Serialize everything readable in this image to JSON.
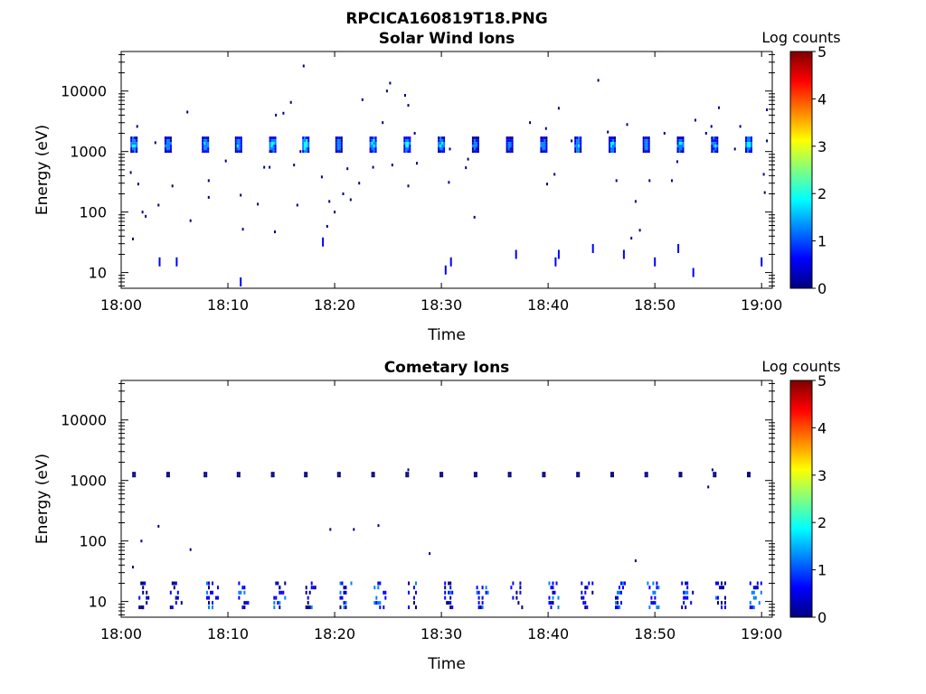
{
  "figure_title": "RPCICA160819T18.PNG",
  "colors": {
    "frame": "#000000",
    "colormap": [
      "#00007f",
      "#0000ff",
      "#007fff",
      "#00ffff",
      "#7fff7f",
      "#ffff00",
      "#ff7f00",
      "#ff0000",
      "#7f0000"
    ]
  },
  "chart_data": [
    {
      "type": "heatmap",
      "title": "Solar Wind Ions",
      "xlabel": "Time",
      "ylabel": "Energy (eV)",
      "x_ticks": [
        "18:00",
        "18:10",
        "18:20",
        "18:30",
        "18:40",
        "18:50",
        "19:00"
      ],
      "xlim_minutes": [
        0,
        61
      ],
      "y_scale": "log",
      "y_ticks": [
        10,
        100,
        1000,
        10000
      ],
      "y_tick_labels": [
        "10",
        "100",
        "1000",
        "10000"
      ],
      "ylim": [
        5.5,
        45000
      ],
      "colorbar": {
        "label": "Log counts",
        "range": [
          0,
          5
        ],
        "ticks": [
          "0",
          "1",
          "2",
          "3",
          "4",
          "5"
        ]
      },
      "bursts": [
        {
          "t": 1.2,
          "e": 1300,
          "c": 2.3
        },
        {
          "t": 4.4,
          "e": 1300,
          "c": 2.1
        },
        {
          "t": 7.9,
          "e": 1300,
          "c": 2.2
        },
        {
          "t": 11.0,
          "e": 1300,
          "c": 2.2
        },
        {
          "t": 14.2,
          "e": 1300,
          "c": 2.4
        },
        {
          "t": 17.3,
          "e": 1300,
          "c": 2.5
        },
        {
          "t": 20.4,
          "e": 1300,
          "c": 2.1
        },
        {
          "t": 23.6,
          "e": 1300,
          "c": 2.6
        },
        {
          "t": 26.8,
          "e": 1300,
          "c": 2.4
        },
        {
          "t": 30.0,
          "e": 1300,
          "c": 2.3
        },
        {
          "t": 33.2,
          "e": 1300,
          "c": 2.0
        },
        {
          "t": 36.4,
          "e": 1300,
          "c": 2.0
        },
        {
          "t": 39.6,
          "e": 1300,
          "c": 2.1
        },
        {
          "t": 42.8,
          "e": 1300,
          "c": 2.2
        },
        {
          "t": 46.0,
          "e": 1300,
          "c": 2.3
        },
        {
          "t": 49.2,
          "e": 1300,
          "c": 2.0
        },
        {
          "t": 52.4,
          "e": 1300,
          "c": 2.3
        },
        {
          "t": 55.6,
          "e": 1300,
          "c": 2.2
        },
        {
          "t": 58.8,
          "e": 1300,
          "c": 2.4
        }
      ],
      "points": [
        {
          "t": 1.5,
          "e": 2600
        },
        {
          "t": 0.9,
          "e": 450
        },
        {
          "t": 1.6,
          "e": 290
        },
        {
          "t": 2.0,
          "e": 100
        },
        {
          "t": 2.3,
          "e": 85
        },
        {
          "t": 1.1,
          "e": 36
        },
        {
          "t": 3.5,
          "e": 130
        },
        {
          "t": 4.8,
          "e": 270
        },
        {
          "t": 6.2,
          "e": 4500
        },
        {
          "t": 6.5,
          "e": 72
        },
        {
          "t": 8.2,
          "e": 330
        },
        {
          "t": 8.2,
          "e": 175
        },
        {
          "t": 11.2,
          "e": 190
        },
        {
          "t": 11.4,
          "e": 52
        },
        {
          "t": 12.8,
          "e": 135
        },
        {
          "t": 13.4,
          "e": 550
        },
        {
          "t": 13.9,
          "e": 550
        },
        {
          "t": 14.5,
          "e": 4000
        },
        {
          "t": 15.2,
          "e": 4300
        },
        {
          "t": 15.9,
          "e": 6500
        },
        {
          "t": 17.1,
          "e": 26000
        },
        {
          "t": 16.2,
          "e": 600
        },
        {
          "t": 16.5,
          "e": 130
        },
        {
          "t": 14.4,
          "e": 47
        },
        {
          "t": 18.8,
          "e": 380
        },
        {
          "t": 19.5,
          "e": 150
        },
        {
          "t": 19.3,
          "e": 58
        },
        {
          "t": 20.0,
          "e": 100
        },
        {
          "t": 20.8,
          "e": 200
        },
        {
          "t": 21.5,
          "e": 160
        },
        {
          "t": 22.3,
          "e": 300
        },
        {
          "t": 22.6,
          "e": 7200
        },
        {
          "t": 24.5,
          "e": 3000
        },
        {
          "t": 24.9,
          "e": 10000
        },
        {
          "t": 25.2,
          "e": 13500
        },
        {
          "t": 26.6,
          "e": 8500
        },
        {
          "t": 26.9,
          "e": 5800
        },
        {
          "t": 27.5,
          "e": 2000
        },
        {
          "t": 27.7,
          "e": 640
        },
        {
          "t": 26.9,
          "e": 270
        },
        {
          "t": 21.2,
          "e": 520
        },
        {
          "t": 23.6,
          "e": 550
        },
        {
          "t": 25.4,
          "e": 600
        },
        {
          "t": 32.3,
          "e": 540
        },
        {
          "t": 30.8,
          "e": 1100
        },
        {
          "t": 30.7,
          "e": 310
        },
        {
          "t": 33.1,
          "e": 82
        },
        {
          "t": 38.3,
          "e": 3000
        },
        {
          "t": 39.8,
          "e": 2400
        },
        {
          "t": 39.9,
          "e": 290
        },
        {
          "t": 40.6,
          "e": 420
        },
        {
          "t": 42.2,
          "e": 1500
        },
        {
          "t": 44.7,
          "e": 15000
        },
        {
          "t": 45.6,
          "e": 2100
        },
        {
          "t": 46.4,
          "e": 330
        },
        {
          "t": 47.4,
          "e": 2800
        },
        {
          "t": 48.2,
          "e": 150
        },
        {
          "t": 48.6,
          "e": 50
        },
        {
          "t": 47.8,
          "e": 37
        },
        {
          "t": 49.5,
          "e": 330
        },
        {
          "t": 50.9,
          "e": 2000
        },
        {
          "t": 52.1,
          "e": 680
        },
        {
          "t": 51.6,
          "e": 330
        },
        {
          "t": 53.8,
          "e": 3300
        },
        {
          "t": 54.8,
          "e": 2000
        },
        {
          "t": 55.3,
          "e": 2600
        },
        {
          "t": 56.0,
          "e": 5300
        },
        {
          "t": 57.5,
          "e": 1100
        },
        {
          "t": 60.2,
          "e": 420
        },
        {
          "t": 60.3,
          "e": 210
        },
        {
          "t": 60.5,
          "e": 4900
        },
        {
          "t": 58.0,
          "e": 2600
        },
        {
          "t": 60.5,
          "e": 1500
        },
        {
          "t": 3.2,
          "e": 1400
        },
        {
          "t": 41.0,
          "e": 5200
        },
        {
          "t": 32.5,
          "e": 750
        },
        {
          "t": 9.8,
          "e": 700
        },
        {
          "t": 16.8,
          "e": 1000
        }
      ],
      "sticks": [
        {
          "t": 3.6,
          "e": 15
        },
        {
          "t": 5.2,
          "e": 15
        },
        {
          "t": 11.2,
          "e": 7
        },
        {
          "t": 18.9,
          "e": 32
        },
        {
          "t": 30.4,
          "e": 11
        },
        {
          "t": 30.9,
          "e": 15
        },
        {
          "t": 37.0,
          "e": 20
        },
        {
          "t": 40.7,
          "e": 15
        },
        {
          "t": 41.0,
          "e": 20
        },
        {
          "t": 44.2,
          "e": 25
        },
        {
          "t": 47.1,
          "e": 20
        },
        {
          "t": 50.0,
          "e": 15
        },
        {
          "t": 52.2,
          "e": 25
        },
        {
          "t": 53.6,
          "e": 10
        },
        {
          "t": 60.0,
          "e": 15
        }
      ]
    },
    {
      "type": "heatmap",
      "title": "Cometary Ions",
      "xlabel": "Time",
      "ylabel": "Energy (eV)",
      "x_ticks": [
        "18:00",
        "18:10",
        "18:20",
        "18:30",
        "18:40",
        "18:50",
        "19:00"
      ],
      "xlim_minutes": [
        0,
        61
      ],
      "y_scale": "log",
      "y_ticks": [
        10,
        100,
        1000,
        10000
      ],
      "y_tick_labels": [
        "10",
        "100",
        "1000",
        "10000"
      ],
      "ylim": [
        5.5,
        45000
      ],
      "colorbar": {
        "label": "Log counts",
        "range": [
          0,
          5
        ],
        "ticks": [
          "0",
          "1",
          "2",
          "3",
          "4",
          "5"
        ]
      },
      "bursts": [
        {
          "t": 1.2,
          "e": 1250,
          "c": 1.1
        },
        {
          "t": 4.4,
          "e": 1250,
          "c": 1.0
        },
        {
          "t": 7.9,
          "e": 1250,
          "c": 1.0
        },
        {
          "t": 11.0,
          "e": 1250,
          "c": 1.0
        },
        {
          "t": 14.2,
          "e": 1250,
          "c": 1.0
        },
        {
          "t": 17.3,
          "e": 1250,
          "c": 1.0
        },
        {
          "t": 20.4,
          "e": 1250,
          "c": 1.0
        },
        {
          "t": 23.6,
          "e": 1250,
          "c": 1.0
        },
        {
          "t": 26.8,
          "e": 1250,
          "c": 1.0
        },
        {
          "t": 30.0,
          "e": 1250,
          "c": 1.1
        },
        {
          "t": 33.2,
          "e": 1250,
          "c": 1.0
        },
        {
          "t": 36.4,
          "e": 1250,
          "c": 1.0
        },
        {
          "t": 39.6,
          "e": 1250,
          "c": 1.0
        },
        {
          "t": 42.8,
          "e": 1250,
          "c": 1.1
        },
        {
          "t": 46.0,
          "e": 1250,
          "c": 1.0
        },
        {
          "t": 49.2,
          "e": 1250,
          "c": 1.1
        },
        {
          "t": 52.4,
          "e": 1250,
          "c": 1.0
        },
        {
          "t": 55.6,
          "e": 1250,
          "c": 1.0
        },
        {
          "t": 58.8,
          "e": 1250,
          "c": 1.0
        }
      ],
      "low_bursts": [
        {
          "t": 1.8,
          "c": 0.8
        },
        {
          "t": 4.9,
          "c": 0.8
        },
        {
          "t": 8.3,
          "c": 1.2
        },
        {
          "t": 11.3,
          "c": 1.4
        },
        {
          "t": 14.6,
          "c": 1.2
        },
        {
          "t": 17.6,
          "c": 1.0
        },
        {
          "t": 20.8,
          "c": 1.2
        },
        {
          "t": 24.0,
          "c": 1.4
        },
        {
          "t": 27.2,
          "c": 1.2
        },
        {
          "t": 30.6,
          "c": 1.0
        },
        {
          "t": 33.6,
          "c": 1.3
        },
        {
          "t": 36.8,
          "c": 1.0
        },
        {
          "t": 40.2,
          "c": 1.2
        },
        {
          "t": 43.4,
          "c": 1.0
        },
        {
          "t": 46.6,
          "c": 1.3
        },
        {
          "t": 49.6,
          "c": 1.5
        },
        {
          "t": 52.8,
          "c": 1.1
        },
        {
          "t": 56.0,
          "c": 1.0
        },
        {
          "t": 59.2,
          "c": 1.5
        }
      ],
      "points": [
        {
          "t": 1.1,
          "e": 37
        },
        {
          "t": 1.9,
          "e": 100
        },
        {
          "t": 3.5,
          "e": 175
        },
        {
          "t": 6.5,
          "e": 72
        },
        {
          "t": 19.6,
          "e": 155
        },
        {
          "t": 21.8,
          "e": 155
        },
        {
          "t": 24.1,
          "e": 180
        },
        {
          "t": 28.9,
          "e": 62
        },
        {
          "t": 48.2,
          "e": 47
        },
        {
          "t": 55.0,
          "e": 780
        },
        {
          "t": 26.9,
          "e": 1500
        },
        {
          "t": 55.4,
          "e": 1500
        }
      ]
    }
  ]
}
